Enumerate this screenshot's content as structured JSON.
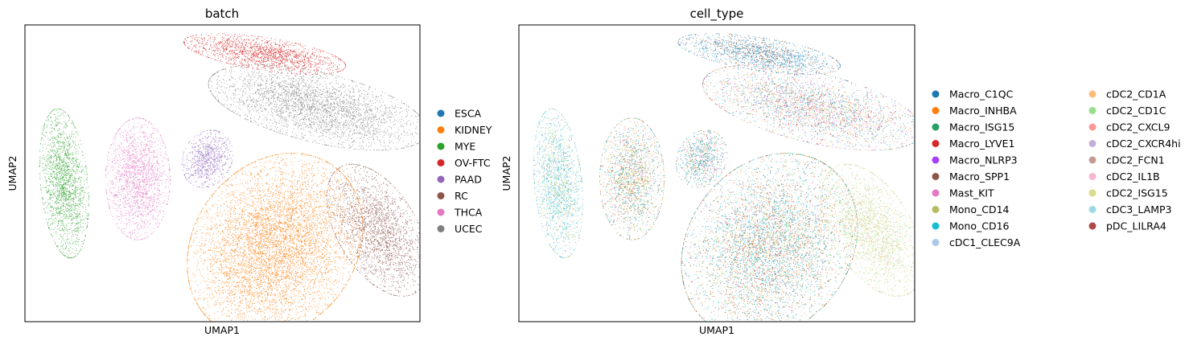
{
  "chart_data": [
    {
      "type": "scatter",
      "title": "batch",
      "xlabel": "UMAP1",
      "ylabel": "UMAP2",
      "grid": false,
      "ticks": false,
      "legend_placement": "right",
      "legend": [
        {
          "name": "ESCA",
          "color": "#1f77b4"
        },
        {
          "name": "KIDNEY",
          "color": "#ff7f0e"
        },
        {
          "name": "MYE",
          "color": "#2ca02c"
        },
        {
          "name": "OV-FTC",
          "color": "#d62728"
        },
        {
          "name": "PAAD",
          "color": "#9467bd"
        },
        {
          "name": "RC",
          "color": "#8c564b"
        },
        {
          "name": "THCA",
          "color": "#e377c2"
        },
        {
          "name": "UCEC",
          "color": "#7f7f7f"
        }
      ],
      "clusters": [
        {
          "label": "OV-FTC",
          "center": [
            5.2,
            9.2
          ],
          "spread": [
            1.9,
            0.35
          ],
          "angle": -8,
          "n": 1600
        },
        {
          "label": "UCEC",
          "center": [
            7.8,
            6.8
          ],
          "spread": [
            2.6,
            0.75
          ],
          "angle": -12,
          "n": 3200
        },
        {
          "label": "MYE",
          "center": [
            -4.6,
            3.4
          ],
          "spread": [
            0.55,
            1.6
          ],
          "angle": 6,
          "n": 1800
        },
        {
          "label": "THCA",
          "center": [
            -1.0,
            3.6
          ],
          "spread": [
            0.75,
            1.3
          ],
          "angle": 0,
          "n": 1900
        },
        {
          "label": "PAAD",
          "center": [
            2.4,
            4.5
          ],
          "spread": [
            0.55,
            0.65
          ],
          "angle": -40,
          "n": 800
        },
        {
          "label": "KIDNEY",
          "center": [
            5.7,
            0.6
          ],
          "spread": [
            2.2,
            1.8
          ],
          "angle": 40,
          "n": 6500
        },
        {
          "label": "RC",
          "center": [
            10.7,
            1.3
          ],
          "spread": [
            0.9,
            1.6
          ],
          "angle": 35,
          "n": 2300
        }
      ]
    },
    {
      "type": "scatter",
      "title": "cell_type",
      "xlabel": "UMAP1",
      "ylabel": "UMAP2",
      "grid": false,
      "ticks": false,
      "legend_placement": "right",
      "legend": [
        {
          "name": "Macro_C1QC",
          "color": "#1f77b4"
        },
        {
          "name": "Macro_INHBA",
          "color": "#ff7f0e"
        },
        {
          "name": "Macro_ISG15",
          "color": "#279e68"
        },
        {
          "name": "Macro_LYVE1",
          "color": "#d62728"
        },
        {
          "name": "Macro_NLRP3",
          "color": "#aa40fc"
        },
        {
          "name": "Macro_SPP1",
          "color": "#8c564b"
        },
        {
          "name": "Mast_KIT",
          "color": "#e377c2"
        },
        {
          "name": "Mono_CD14",
          "color": "#b5bd61"
        },
        {
          "name": "Mono_CD16",
          "color": "#17becf"
        },
        {
          "name": "cDC1_CLEC9A",
          "color": "#aec7e8"
        },
        {
          "name": "cDC2_CD1A",
          "color": "#ffbb78"
        },
        {
          "name": "cDC2_CD1C",
          "color": "#98df8a"
        },
        {
          "name": "cDC2_CXCL9",
          "color": "#ff9896"
        },
        {
          "name": "cDC2_CXCR4hi",
          "color": "#c5b0d5"
        },
        {
          "name": "cDC2_FCN1",
          "color": "#c49c94"
        },
        {
          "name": "cDC2_IL1B",
          "color": "#f7b6d2"
        },
        {
          "name": "cDC2_ISG15",
          "color": "#dbdb8d"
        },
        {
          "name": "cDC3_LAMP3",
          "color": "#9edae5"
        },
        {
          "name": "pDC_LILRA4",
          "color": "#ad494a"
        }
      ],
      "clusters": [
        {
          "center": [
            5.2,
            9.2
          ],
          "spread": [
            1.9,
            0.35
          ],
          "angle": -8,
          "n": 1600,
          "mix": [
            [
              0,
              5
            ],
            [
              5,
              2
            ],
            [
              17,
              1
            ],
            [
              8,
              1
            ],
            [
              1,
              0.5
            ]
          ]
        },
        {
          "center": [
            7.8,
            6.8
          ],
          "spread": [
            2.6,
            0.75
          ],
          "angle": -12,
          "n": 3200,
          "mix": [
            [
              8,
              2
            ],
            [
              0,
              1.5
            ],
            [
              1,
              1.5
            ],
            [
              6,
              1
            ],
            [
              7,
              1
            ],
            [
              5,
              1
            ],
            [
              3,
              1
            ],
            [
              12,
              1
            ],
            [
              13,
              1
            ],
            [
              11,
              1
            ],
            [
              4,
              0.5
            ],
            [
              9,
              0.5
            ]
          ]
        },
        {
          "center": [
            -4.6,
            3.4
          ],
          "spread": [
            0.55,
            1.6
          ],
          "angle": 6,
          "n": 1800,
          "mix": [
            [
              8,
              3
            ],
            [
              17,
              2
            ],
            [
              7,
              1.5
            ],
            [
              11,
              1
            ],
            [
              0,
              1
            ],
            [
              9,
              0.5
            ]
          ]
        },
        {
          "center": [
            -1.0,
            3.6
          ],
          "spread": [
            0.75,
            1.3
          ],
          "angle": 0,
          "n": 1900,
          "mix": [
            [
              1,
              2
            ],
            [
              7,
              1.5
            ],
            [
              8,
              1.5
            ],
            [
              0,
              1
            ],
            [
              5,
              1
            ],
            [
              11,
              1
            ],
            [
              6,
              1
            ],
            [
              2,
              0.5
            ]
          ]
        },
        {
          "center": [
            2.4,
            4.5
          ],
          "spread": [
            0.55,
            0.65
          ],
          "angle": -40,
          "n": 800,
          "mix": [
            [
              0,
              2
            ],
            [
              2,
              2
            ],
            [
              8,
              1
            ],
            [
              12,
              1
            ],
            [
              6,
              1
            ],
            [
              1,
              0.5
            ]
          ]
        },
        {
          "center": [
            5.7,
            0.6
          ],
          "spread": [
            2.2,
            1.8
          ],
          "angle": 40,
          "n": 6500,
          "mix": [
            [
              8,
              3
            ],
            [
              0,
              2
            ],
            [
              1,
              2
            ],
            [
              11,
              1.5
            ],
            [
              2,
              1
            ],
            [
              3,
              1
            ],
            [
              5,
              1
            ],
            [
              7,
              1
            ],
            [
              12,
              0.5
            ],
            [
              13,
              0.5
            ],
            [
              9,
              0.5
            ]
          ]
        },
        {
          "center": [
            10.7,
            1.3
          ],
          "spread": [
            0.9,
            1.6
          ],
          "angle": 35,
          "n": 2300,
          "mix": [
            [
              16,
              3
            ],
            [
              11,
              2
            ],
            [
              7,
              1.5
            ],
            [
              10,
              0.5
            ],
            [
              15,
              0.5
            ]
          ]
        }
      ]
    }
  ]
}
